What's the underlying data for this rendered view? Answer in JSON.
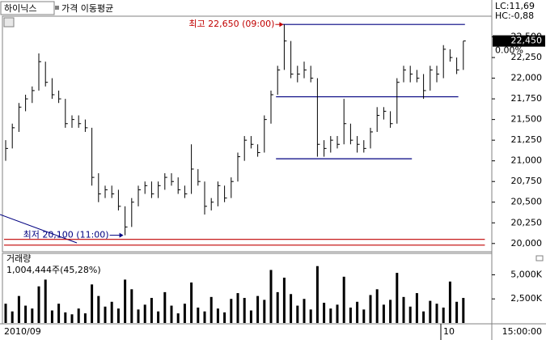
{
  "chart_data": {
    "type": "ohlc",
    "stock": "하이닉스",
    "indicator": "가격 이동평균",
    "lc_label": "LC:11,69",
    "hc_label": "HC:-0,88",
    "last_price": {
      "value": 22450,
      "label": "22,450"
    },
    "change_label": "0.00%",
    "high_note": "최고 22,650 (09:00)",
    "low_note": "최저 20,100 (11:00)",
    "high_index": 42,
    "low_index": 18,
    "volume_title": "거래량",
    "volume_note": "1,004,444주(45,28%)",
    "x_labels": [
      "2010/09",
      "10",
      "15:00:00"
    ],
    "color": "#000000",
    "ylim": [
      19900,
      22750
    ],
    "yticks": [
      {
        "value": 20000,
        "label": "20,000"
      },
      {
        "value": 20250,
        "label": "20,250"
      },
      {
        "value": 20500,
        "label": "20,500"
      },
      {
        "value": 20750,
        "label": "20,750"
      },
      {
        "value": 21000,
        "label": "21,000"
      },
      {
        "value": 21250,
        "label": "21,250"
      },
      {
        "value": 21500,
        "label": "21,500"
      },
      {
        "value": 21750,
        "label": "21,750"
      },
      {
        "value": 22000,
        "label": "22,000"
      },
      {
        "value": 22250,
        "label": "22,250"
      },
      {
        "value": 22500,
        "label": "22,500"
      }
    ],
    "reference_lines": [
      {
        "value": 22650,
        "start": 42,
        "end": 69,
        "color": "#000080"
      },
      {
        "value": 21775,
        "start": 41,
        "end": 68,
        "color": "#000080"
      },
      {
        "value": 21025,
        "start": 41,
        "end": 61,
        "color": "#000080"
      },
      {
        "value": 20050,
        "start": 0,
        "end": 72,
        "color": "#c00000"
      },
      {
        "value": 19980,
        "start": 0,
        "end": 72,
        "color": "#c00000"
      }
    ],
    "high": [
      21250,
      21450,
      21700,
      21800,
      21900,
      22300,
      22200,
      22000,
      21850,
      21750,
      21550,
      21550,
      21500,
      21400,
      20850,
      20700,
      20700,
      20650,
      20450,
      20550,
      20700,
      20750,
      20750,
      20750,
      20850,
      20850,
      20800,
      20700,
      21200,
      20900,
      20750,
      20550,
      20750,
      20700,
      20800,
      21100,
      21300,
      21300,
      21200,
      21550,
      21850,
      22150,
      22650,
      22450,
      22150,
      22200,
      22150,
      22000,
      21250,
      21300,
      21300,
      21750,
      21450,
      21300,
      21250,
      21400,
      21650,
      21650,
      21600,
      22000,
      22150,
      22150,
      22100,
      22050,
      22150,
      22150,
      22400,
      22350,
      22250,
      22450
    ],
    "low": [
      21000,
      21150,
      21350,
      21600,
      21700,
      21850,
      21900,
      21750,
      21700,
      21400,
      21400,
      21400,
      21350,
      20700,
      20500,
      20550,
      20550,
      20400,
      20100,
      20200,
      20450,
      20600,
      20550,
      20550,
      20650,
      20700,
      20600,
      20550,
      20600,
      20700,
      20350,
      20400,
      20450,
      20500,
      20550,
      20750,
      21000,
      21150,
      21050,
      21100,
      21450,
      21800,
      22100,
      22000,
      21950,
      22000,
      21950,
      21050,
      21050,
      21100,
      21150,
      21200,
      21200,
      21100,
      21100,
      21150,
      21350,
      21500,
      21400,
      21450,
      21950,
      21950,
      21950,
      21750,
      21850,
      21950,
      22000,
      22200,
      22050,
      22100
    ],
    "close": [
      21150,
      21400,
      21650,
      21750,
      21850,
      22200,
      21950,
      21800,
      21750,
      21450,
      21500,
      21450,
      21400,
      20800,
      20600,
      20650,
      20600,
      20450,
      20200,
      20500,
      20650,
      20700,
      20600,
      20700,
      20800,
      20750,
      20650,
      20600,
      20900,
      20750,
      20450,
      20500,
      20700,
      20550,
      20750,
      21050,
      21250,
      21200,
      21100,
      21500,
      21800,
      22100,
      22450,
      22050,
      22050,
      22100,
      22000,
      21200,
      21150,
      21250,
      21200,
      21450,
      21250,
      21200,
      21150,
      21350,
      21550,
      21600,
      21450,
      21950,
      22100,
      22050,
      22000,
      21850,
      22100,
      22050,
      22350,
      22250,
      22100,
      22450
    ],
    "volume": [
      2000,
      1200,
      2800,
      1800,
      1500,
      3800,
      4500,
      1300,
      2000,
      1100,
      900,
      1500,
      1000,
      4000,
      2800,
      1700,
      2200,
      1500,
      4500,
      3500,
      1400,
      1900,
      2600,
      1200,
      3200,
      1800,
      1000,
      2000,
      4200,
      1600,
      1200,
      2700,
      1500,
      1100,
      2500,
      3100,
      2600,
      1300,
      2800,
      2400,
      5500,
      3200,
      4700,
      3000,
      1800,
      2500,
      1400,
      5900,
      2100,
      1500,
      1900,
      4800,
      1600,
      2200,
      1400,
      2900,
      3500,
      1900,
      2400,
      5200,
      2700,
      1700,
      3100,
      1200,
      2300,
      2000,
      1600,
      4300,
      2200,
      2600
    ],
    "vlim": [
      0,
      6800
    ],
    "vticks": [
      {
        "value": 2500,
        "label": "2,500K"
      },
      {
        "value": 5000,
        "label": "5,000K"
      }
    ]
  }
}
